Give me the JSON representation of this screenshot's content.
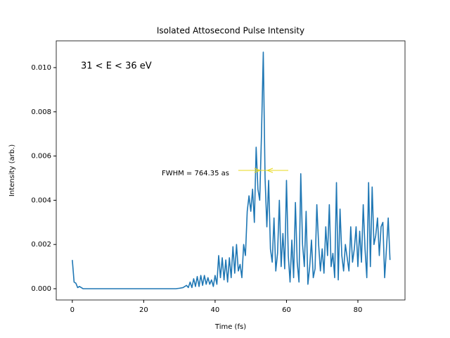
{
  "chart_data": {
    "type": "line",
    "title": "Isolated Attosecond Pulse Intensity",
    "xlabel": "Time (fs)",
    "ylabel": "Intensity (arb.)",
    "annotations": [
      "31 < E < 36 eV",
      "FWHM = 764.35 as"
    ],
    "fwhm_line": {
      "x": [
        46.5,
        60.5
      ],
      "y": 0.00535,
      "arrows": [
        52.6,
        54.6
      ],
      "color": "#e8d81a"
    },
    "xlim": [
      -4.5,
      93.2
    ],
    "ylim": [
      -0.00051,
      0.01121
    ],
    "xticks": [
      0,
      20,
      40,
      60,
      80
    ],
    "yticks": [
      {
        "value": 0,
        "label": "0.000"
      },
      {
        "value": 0.002,
        "label": "0.002"
      },
      {
        "value": 0.004,
        "label": "0.004"
      },
      {
        "value": 0.006,
        "label": "0.006"
      },
      {
        "value": 0.008,
        "label": "0.008"
      },
      {
        "value": 0.01,
        "label": "0.010"
      }
    ],
    "x": [
      0,
      0.5,
      1,
      1.5,
      2,
      3,
      29,
      30,
      31,
      32,
      32.5,
      33,
      33.5,
      34,
      34.5,
      35,
      35.5,
      36,
      36.5,
      37,
      37.5,
      38,
      38.5,
      39,
      39.5,
      40,
      40.5,
      41,
      41.5,
      42,
      42.5,
      43,
      43.5,
      44,
      44.5,
      45,
      45.5,
      46,
      46.5,
      47,
      47.5,
      48,
      48.5,
      49,
      49.5,
      50,
      50.5,
      51,
      51.5,
      52,
      52.5,
      53,
      53.5,
      54,
      54.5,
      55,
      55.5,
      56,
      56.5,
      57,
      57.5,
      58,
      58.5,
      59,
      59.5,
      60,
      60.5,
      61,
      61.5,
      62,
      62.5,
      63,
      63.5,
      64,
      64.5,
      65,
      65.5,
      66,
      66.5,
      67,
      67.5,
      68,
      68.5,
      69,
      69.5,
      70,
      70.5,
      71,
      71.5,
      72,
      72.5,
      73,
      73.5,
      74,
      74.5,
      75,
      75.5,
      76,
      76.5,
      77,
      77.5,
      78,
      78.5,
      79,
      79.5,
      80,
      80.5,
      81,
      81.5,
      82,
      82.5,
      83,
      83.5,
      84,
      84.5,
      85,
      85.5,
      86,
      86.5,
      87,
      87.5,
      88,
      88.5,
      89
    ],
    "series": [
      {
        "name": "Intensity",
        "color": "#1f77b4",
        "values": [
          0.0013,
          0.0003,
          0.00025,
          5e-05,
          0.0001,
          0,
          0,
          2e-05,
          5e-05,
          0.00015,
          5e-05,
          0.0003,
          5e-05,
          0.00045,
          0.0001,
          0.00055,
          0.0001,
          0.0006,
          0.00015,
          0.0006,
          0.0002,
          0.0005,
          0.0002,
          0.0004,
          0.0001,
          0.0006,
          0.0002,
          0.0015,
          0.0005,
          0.0014,
          0.0004,
          0.0013,
          0.0003,
          0.0014,
          0.0005,
          0.0019,
          0.0007,
          0.002,
          0.0008,
          0.0011,
          0.0005,
          0.002,
          0.0015,
          0.0035,
          0.0042,
          0.0035,
          0.0045,
          0.003,
          0.0064,
          0.0045,
          0.004,
          0.007,
          0.0107,
          0.005,
          0.0028,
          0.0049,
          0.0018,
          0.0012,
          0.0032,
          0.0008,
          0.0016,
          0.004,
          0.001,
          0.0025,
          0.0009,
          0.0049,
          0.0015,
          0.0003,
          0.0022,
          0.0005,
          0.0039,
          0.0012,
          0.0003,
          0.0052,
          0.002,
          0.001,
          0.0035,
          0.0002,
          0.001,
          0.0022,
          0.0005,
          0.0009,
          0.0038,
          0.002,
          0.0008,
          0.0018,
          0.0007,
          0.0028,
          0.0015,
          0.0038,
          0.001,
          0.0016,
          0.0005,
          0.0048,
          0.0004,
          0.0036,
          0.0015,
          0.0008,
          0.002,
          0.0014,
          0.0008,
          0.0028,
          0.0012,
          0.0018,
          0.0028,
          0.001,
          0.0026,
          0.0012,
          0.0038,
          0.0018,
          0.0005,
          0.0048,
          0.001,
          0.0046,
          0.002,
          0.0024,
          0.0032,
          0.0015,
          0.0028,
          0.003,
          0.0005,
          0.0018,
          0.0032,
          0.0013
        ]
      }
    ]
  }
}
